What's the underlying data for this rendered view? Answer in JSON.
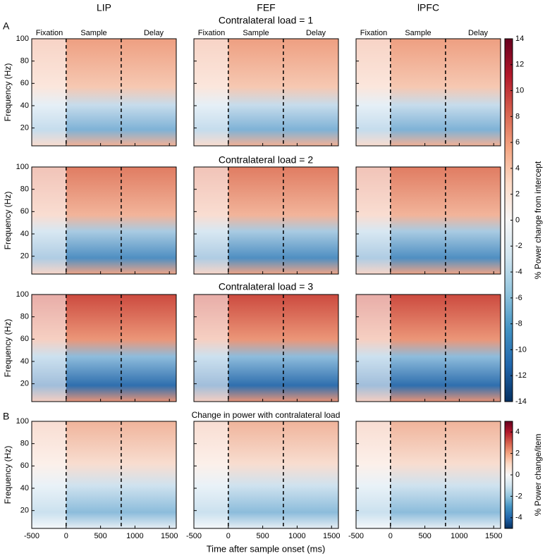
{
  "chart_data": {
    "type": "heatmap",
    "panel_labels": [
      "A",
      "B"
    ],
    "columns": [
      "LIP",
      "FEF",
      "lPFC"
    ],
    "row_titles": [
      "Contralateral load = 1",
      "Contralateral load = 2",
      "Contralateral load = 3",
      "Change in power with contralateral load"
    ],
    "epochs": [
      "Fixation",
      "Sample",
      "Delay"
    ],
    "x_label": "Time after sample onset (ms)",
    "y_label": "Frequency (Hz)",
    "xlim": [
      -500,
      1600
    ],
    "xticks": [
      -500,
      0,
      500,
      1000,
      1500
    ],
    "ylim": [
      4,
      100
    ],
    "yticks": [
      20,
      40,
      60,
      80,
      100
    ],
    "event_lines": [
      0,
      800
    ],
    "colorbars": [
      {
        "label": "% Power change from intercept",
        "lim": [
          -14,
          14
        ],
        "ticks": [
          -14,
          -12,
          -10,
          -8,
          -6,
          -4,
          -2,
          0,
          2,
          4,
          6,
          8,
          10,
          12,
          14
        ]
      },
      {
        "label": "% Power change/item",
        "lim": [
          -5,
          5
        ],
        "ticks": [
          -4,
          -2,
          0,
          2,
          4
        ]
      }
    ]
  }
}
